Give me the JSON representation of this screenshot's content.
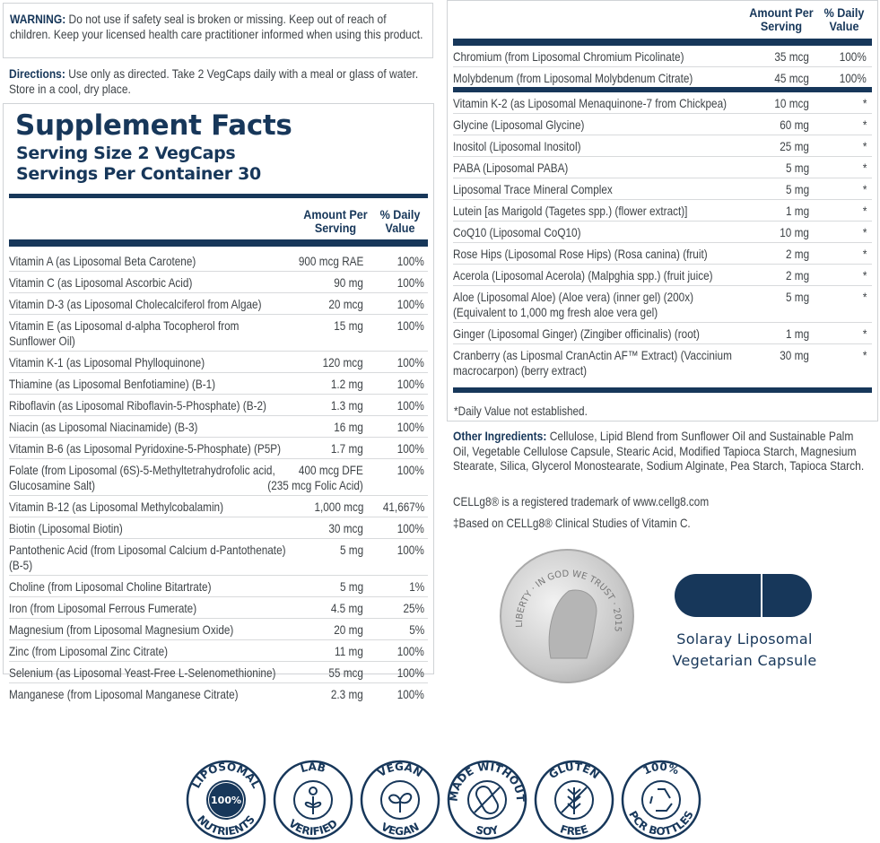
{
  "warning": {
    "label": "WARNING:",
    "text": " Do not use if safety seal is broken or missing. Keep out of reach of children. Keep your licensed health care practitioner informed when using this product."
  },
  "directions": {
    "label": "Directions:",
    "text": " Use only as directed. Take 2 VegCaps daily with a meal or glass of water. Store in a cool, dry place."
  },
  "facts": {
    "title": "Supplement Facts",
    "serving_size": "Serving Size 2 VegCaps",
    "servings_per_container": "Servings Per Container 30",
    "col_amount": "Amount Per Serving",
    "col_dv": "% Daily Value"
  },
  "left_rows": [
    [
      "Vitamin A (as Liposomal Beta Carotene)",
      "900 mcg RAE",
      "100%"
    ],
    [
      "Vitamin C (as Liposomal Ascorbic Acid)",
      "90 mg",
      "100%"
    ],
    [
      "Vitamin D-3 (as Liposomal Cholecalciferol from Algae)",
      "20 mcg",
      "100%"
    ],
    [
      "Vitamin E (as Liposomal d-alpha Tocopherol from Sunflower Oil)",
      "15 mg",
      "100%"
    ],
    [
      "Vitamin K-1 (as Liposomal Phylloquinone)",
      "120 mcg",
      "100%"
    ],
    [
      "Thiamine (as Liposomal Benfotiamine) (B-1)",
      "1.2 mg",
      "100%"
    ],
    [
      "Riboflavin (as Liposomal Riboflavin-5-Phosphate) (B-2)",
      "1.3 mg",
      "100%"
    ],
    [
      "Niacin (as Liposomal Niacinamide) (B-3)",
      "16 mg",
      "100%"
    ],
    [
      "Vitamin B-6 (as Liposomal Pyridoxine-5-Phosphate) (P5P)",
      "1.7 mg",
      "100%"
    ],
    [
      "Folate (from Liposomal (6S)-5-Methyltetrahydrofolic acid, Glucosamine Salt)",
      "400 mcg DFE\n(235 mcg Folic Acid)",
      "100%"
    ],
    [
      "Vitamin B-12 (as Liposomal Methylcobalamin)",
      "1,000 mcg",
      "41,667%"
    ],
    [
      "Biotin (Liposomal Biotin)",
      "30 mcg",
      "100%"
    ],
    [
      "Pantothenic Acid (from Liposomal Calcium d-Pantothenate) (B-5)",
      "5 mg",
      "100%"
    ],
    [
      "Choline (from Liposomal Choline Bitartrate)",
      "5 mg",
      "1%"
    ],
    [
      "Iron (from Liposomal Ferrous Fumerate)",
      "4.5 mg",
      "25%"
    ],
    [
      "Magnesium (from Liposomal Magnesium Oxide)",
      "20 mg",
      "5%"
    ],
    [
      "Zinc (from Liposomal Zinc Citrate)",
      "11 mg",
      "100%"
    ],
    [
      "Selenium (as Liposomal Yeast-Free L-Selenomethionine)",
      "55 mcg",
      "100%"
    ],
    [
      "Manganese (from Liposomal Manganese Citrate)",
      "2.3 mg",
      "100%"
    ]
  ],
  "right_rows_a": [
    [
      "Chromium (from Liposomal Chromium Picolinate)",
      "35 mcg",
      "100%"
    ],
    [
      "Molybdenum (from Liposomal Molybdenum Citrate)",
      "45 mcg",
      "100%"
    ]
  ],
  "right_rows_b": [
    [
      "Vitamin K-2 (as Liposomal Menaquinone-7 from Chickpea)",
      "10 mcg",
      "*"
    ],
    [
      "Glycine (Liposomal Glycine)",
      "60 mg",
      "*"
    ],
    [
      "Inositol (Liposomal Inositol)",
      "25 mg",
      "*"
    ],
    [
      "PABA (Liposomal PABA)",
      "5 mg",
      "*"
    ],
    [
      "Liposomal Trace Mineral Complex",
      "5 mg",
      "*"
    ],
    [
      "Lutein [as Marigold (Tagetes spp.) (flower extract)]",
      "1 mg",
      "*"
    ],
    [
      "CoQ10 (Liposomal CoQ10)",
      "10 mg",
      "*"
    ],
    [
      "Rose Hips (Liposomal Rose Hips) (Rosa canina) (fruit)",
      "2 mg",
      "*"
    ],
    [
      "Acerola (Liposomal Acerola) (Malpghia spp.) (fruit juice)",
      "2 mg",
      "*"
    ],
    [
      "Aloe (Liposomal Aloe) (Aloe vera) (inner gel) (200x) (Equivalent to 1,000 mg fresh aloe vera gel)",
      "5 mg",
      "*"
    ],
    [
      "Ginger (Liposomal Ginger) (Zingiber officinalis) (root)",
      "1 mg",
      "*"
    ],
    [
      "Cranberry (as Liposmal CranActin AF™ Extract) (Vaccinium macrocarpon) (berry extract)",
      "30 mg",
      "*"
    ]
  ],
  "footnote": "*Daily Value not established.",
  "other": {
    "label": "Other Ingredients:",
    "text": " Cellulose, Lipid Blend from Sunflower Oil and Sustainable Palm Oil, Vegetable Cellulose Capsule, Stearic Acid, Modified Tapioca Starch, Magnesium Stearate, Silica, Glycerol Monostearate, Sodium Alginate, Pea Starch, Tapioca Starch."
  },
  "trademark": "CELLg8® is a registered trademark of www.cellg8.com",
  "clinical": "‡Based on CELLg8® Clinical Studies of Vitamin C.",
  "dime_text": "LIBERTY · IN GOD WE TRUST · 2015",
  "capsule": {
    "line1": "Solaray Liposomal",
    "line2": "Vegetarian Capsule"
  },
  "badges": [
    {
      "top": "LIPOSOMAL",
      "bottom": "NUTRIENTS",
      "center": "100%",
      "icon": "filled-circle"
    },
    {
      "top": "LAB",
      "bottom": "VERIFIED",
      "icon": "sprout-icon"
    },
    {
      "top": "VEGAN",
      "bottom": "VEGAN",
      "icon": "leaf-icon"
    },
    {
      "top": "MADE WITHOUT",
      "bottom": "SOY",
      "icon": "crossed-soybean-icon"
    },
    {
      "top": "GLUTEN",
      "bottom": "FREE",
      "icon": "crossed-wheat-icon"
    },
    {
      "top": "100%",
      "bottom": "PCR BOTTLES",
      "icon": "recycle-icon"
    }
  ],
  "colors": {
    "navy": "#17375a",
    "text": "#3e4347",
    "border": "#d0d3d6"
  }
}
